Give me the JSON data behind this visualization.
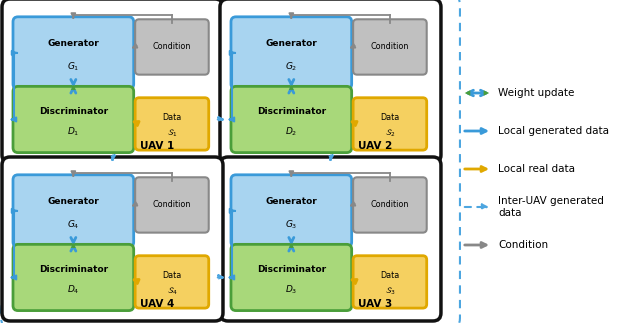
{
  "uavs": [
    {
      "label": "UAV 1",
      "gen_sub": "G_1",
      "disc_sub": "D_1",
      "data_sub": "S_1",
      "idx": 1
    },
    {
      "label": "UAV 2",
      "gen_sub": "G_2",
      "disc_sub": "D_2",
      "data_sub": "S_2",
      "idx": 2
    },
    {
      "label": "UAV 3",
      "gen_sub": "G_3",
      "disc_sub": "D_3",
      "data_sub": "S_3",
      "idx": 3
    },
    {
      "label": "UAV 4",
      "gen_sub": "G_4",
      "disc_sub": "D_4",
      "data_sub": "S_4",
      "idx": 4
    }
  ],
  "gen_fill": "#a8d4f0",
  "gen_edge": "#3a9ad9",
  "disc_fill": "#a8d87a",
  "disc_edge": "#4a9e3a",
  "data_fill": "#f5d060",
  "data_edge": "#e0a800",
  "cond_fill": "#c0c0c0",
  "cond_edge": "#888888",
  "outer_edge": "#111111",
  "inter_color": "#4da6e0",
  "weight_blue": "#3a9ad9",
  "weight_green": "#4a9e3a",
  "cond_arrow": "#888888",
  "local_gen": "#3a9ad9",
  "local_real": "#e0a800"
}
